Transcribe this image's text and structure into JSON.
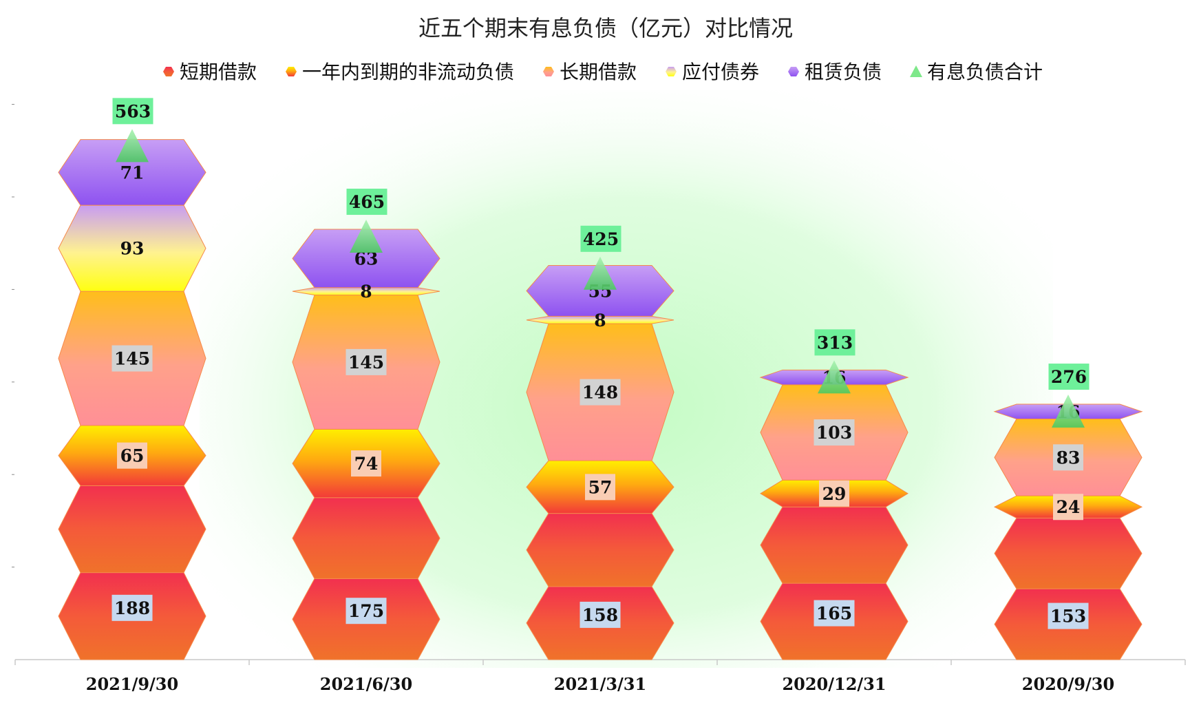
{
  "chart_data": {
    "type": "bar",
    "stacked": true,
    "title": "近五个期末有息负债（亿元）对比情况",
    "categories": [
      "2021/9/30",
      "2021/6/30",
      "2021/3/31",
      "2020/12/31",
      "2020/9/30"
    ],
    "series": [
      {
        "name": "短期借款",
        "values": [
          188,
          175,
          158,
          165,
          153
        ]
      },
      {
        "name": "一年内到期的非流动负债",
        "values": [
          65,
          74,
          57,
          29,
          24
        ]
      },
      {
        "name": "长期借款",
        "values": [
          145,
          145,
          148,
          103,
          83
        ]
      },
      {
        "name": "应付债券",
        "values": [
          93,
          8,
          8,
          null,
          null
        ]
      },
      {
        "name": "租赁负债",
        "values": [
          71,
          63,
          55,
          16,
          16
        ]
      }
    ],
    "total_series": {
      "name": "有息负债合计",
      "values": [
        563,
        465,
        425,
        313,
        276
      ]
    },
    "legend_position": "top",
    "ylim": [
      0,
      600
    ],
    "y_ticks_labeled": false,
    "grid": false
  },
  "colors": {
    "short_loan": "#f23a4e",
    "current_noncurrent": "#ffe600",
    "long_loan": "#ffbb2a",
    "bonds": "#ffff33",
    "lease": "#9a6cf2",
    "total": "#7ee88a",
    "plot_glow": "#c8fcc8",
    "label_bg_short": "#c6d9ef",
    "label_bg_current": "#f9cdb4",
    "label_bg_long": "#d2d2d2",
    "label_bg_total": "#6ef09a"
  }
}
